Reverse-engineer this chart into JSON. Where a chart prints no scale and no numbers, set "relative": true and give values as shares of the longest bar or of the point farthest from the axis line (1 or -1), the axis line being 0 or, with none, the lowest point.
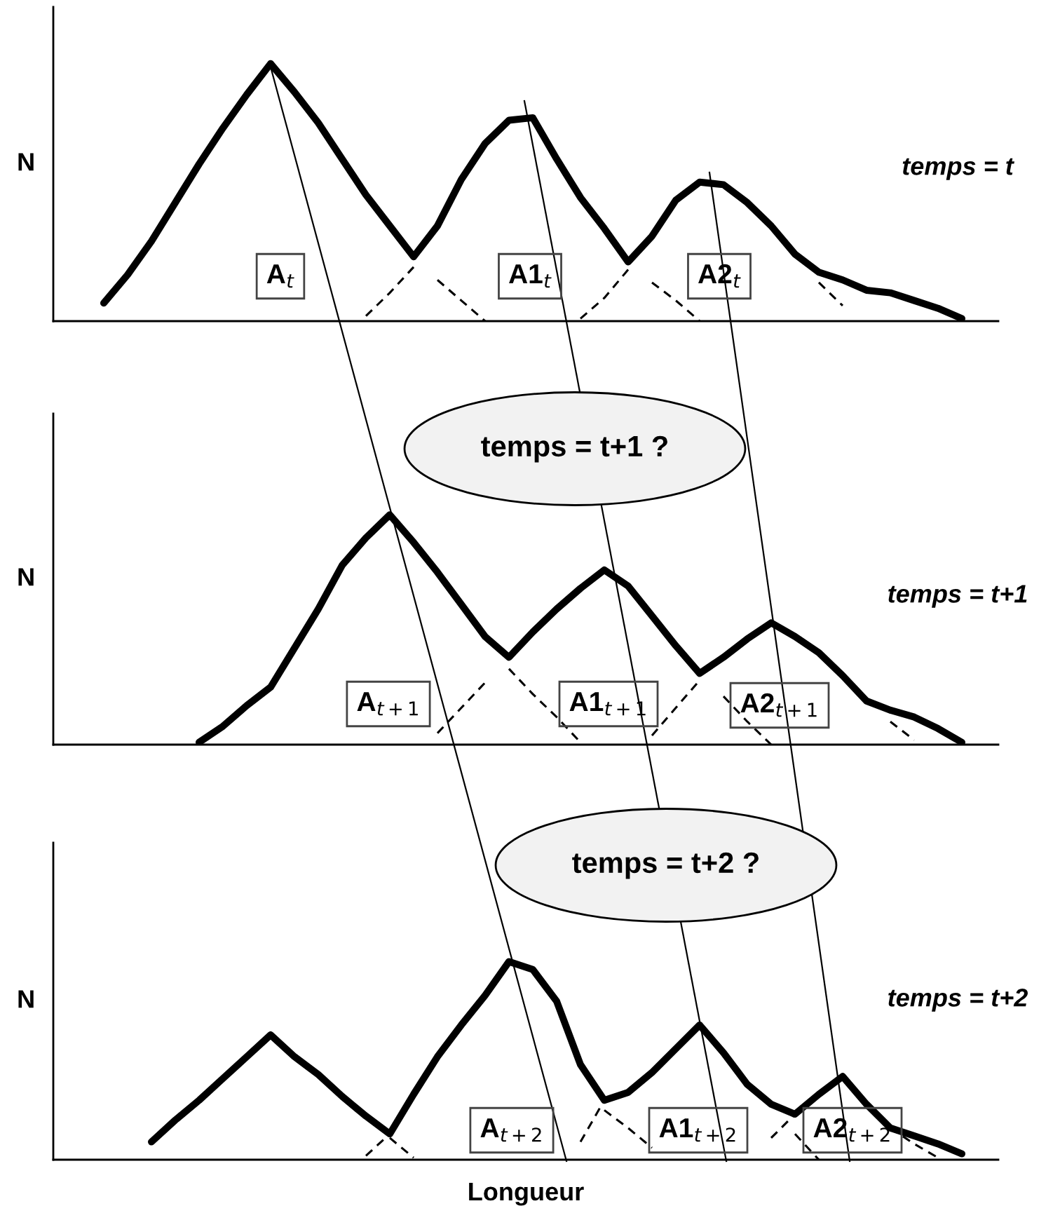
{
  "chart_data": [
    {
      "type": "line",
      "relative": true,
      "ylabel": "N",
      "categories": [
        null,
        null,
        null,
        null,
        null,
        null,
        null,
        null,
        null,
        null,
        null,
        null,
        null,
        null,
        null,
        null,
        null,
        null,
        null,
        null,
        null,
        null,
        null,
        null,
        null,
        null,
        null,
        null,
        null,
        null,
        null,
        null,
        null,
        null,
        null,
        null,
        null,
        null,
        null,
        null
      ],
      "series": [
        {
          "color": "#000000",
          "line_style": "solid",
          "values": [
            null,
            null,
            0.07,
            0.18,
            0.31,
            0.46,
            0.61,
            0.75,
            0.88,
            1.0,
            0.89,
            0.77,
            0.63,
            0.49,
            0.37,
            0.25,
            0.37,
            0.55,
            0.69,
            0.78,
            0.79,
            0.63,
            0.48,
            0.36,
            0.23,
            0.33,
            0.47,
            0.54,
            0.53,
            0.46,
            0.37,
            0.26,
            0.19,
            0.16,
            0.12,
            0.11,
            0.08,
            0.05,
            0.01,
            null
          ]
        },
        {
          "color": "#000000",
          "line_style": "dashed",
          "values": [
            null,
            null,
            null,
            null,
            null,
            null,
            null,
            null,
            null,
            null,
            null,
            null,
            null,
            0.02,
            0.11,
            0.21,
            null,
            null,
            null,
            null,
            null,
            null,
            0.01,
            0.09,
            0.2,
            null,
            null,
            null,
            null,
            null,
            null,
            null,
            null,
            null,
            null,
            null,
            null,
            null,
            null,
            null
          ]
        },
        {
          "color": "#000000",
          "line_style": "dashed",
          "values": [
            null,
            null,
            null,
            null,
            null,
            null,
            null,
            null,
            null,
            null,
            null,
            null,
            null,
            null,
            null,
            null,
            0.16,
            0.08,
            0.0,
            null,
            null,
            null,
            null,
            null,
            null,
            0.15,
            0.08,
            0.0,
            null,
            null,
            null,
            null,
            0.15,
            0.06,
            null,
            null,
            null,
            null,
            null,
            null
          ]
        }
      ],
      "annotations": [
        "temps = t",
        "A$_{t}$",
        "A1$_{t}$",
        "A2$_{t}$"
      ]
    },
    {
      "type": "line",
      "relative": true,
      "ylabel": "N",
      "categories": [
        null,
        null,
        null,
        null,
        null,
        null,
        null,
        null,
        null,
        null,
        null,
        null,
        null,
        null,
        null,
        null,
        null,
        null,
        null,
        null,
        null,
        null,
        null,
        null,
        null,
        null,
        null,
        null,
        null,
        null,
        null,
        null,
        null,
        null,
        null,
        null,
        null,
        null,
        null,
        null
      ],
      "series": [
        {
          "color": "#000000",
          "line_style": "solid",
          "values": [
            null,
            null,
            null,
            null,
            null,
            null,
            0.01,
            0.08,
            0.17,
            0.25,
            0.42,
            0.59,
            0.78,
            0.9,
            1.0,
            0.88,
            0.75,
            0.61,
            0.47,
            0.38,
            0.49,
            0.59,
            0.68,
            0.76,
            0.69,
            0.56,
            0.43,
            0.31,
            0.38,
            0.46,
            0.53,
            0.47,
            0.4,
            0.3,
            0.19,
            0.15,
            0.12,
            0.07,
            0.01,
            null
          ]
        },
        {
          "color": "#000000",
          "line_style": "dashed",
          "values": [
            null,
            null,
            null,
            null,
            null,
            null,
            null,
            null,
            null,
            null,
            null,
            null,
            null,
            null,
            null,
            null,
            0.05,
            0.16,
            0.27,
            null,
            null,
            null,
            null,
            null,
            null,
            0.04,
            0.16,
            0.28,
            null,
            null,
            null,
            null,
            null,
            null,
            null,
            null,
            null,
            null,
            null,
            null
          ]
        },
        {
          "color": "#000000",
          "line_style": "dashed",
          "values": [
            null,
            null,
            null,
            null,
            null,
            null,
            null,
            null,
            null,
            null,
            null,
            null,
            null,
            null,
            null,
            null,
            null,
            null,
            null,
            0.33,
            0.22,
            0.12,
            0.01,
            null,
            null,
            null,
            null,
            null,
            0.21,
            0.1,
            0.0,
            null,
            null,
            null,
            null,
            0.1,
            0.02,
            null,
            null,
            null
          ]
        }
      ],
      "annotations": [
        "temps = t+1",
        "A$_{t+1}$",
        "A1$_{t+1}$",
        "A2$_{t+1}$",
        "temps = t+1 ?"
      ]
    },
    {
      "type": "line",
      "relative": true,
      "ylabel": "N",
      "xlabel": "Longueur",
      "categories": [
        null,
        null,
        null,
        null,
        null,
        null,
        null,
        null,
        null,
        null,
        null,
        null,
        null,
        null,
        null,
        null,
        null,
        null,
        null,
        null,
        null,
        null,
        null,
        null,
        null,
        null,
        null,
        null,
        null,
        null,
        null,
        null,
        null,
        null,
        null,
        null,
        null,
        null,
        null,
        null
      ],
      "series": [
        {
          "color": "#000000",
          "line_style": "solid",
          "values": [
            null,
            null,
            null,
            null,
            0.09,
            0.2,
            0.3,
            0.41,
            0.52,
            0.63,
            0.52,
            0.43,
            0.32,
            0.22,
            0.13,
            0.33,
            0.52,
            0.68,
            0.83,
            1.0,
            0.96,
            0.8,
            0.48,
            0.3,
            0.34,
            0.44,
            0.56,
            0.68,
            0.54,
            0.38,
            0.28,
            0.23,
            0.33,
            0.42,
            0.28,
            0.16,
            0.12,
            0.08,
            0.03,
            null
          ]
        },
        {
          "color": "#000000",
          "line_style": "dashed",
          "values": [
            null,
            null,
            null,
            null,
            null,
            null,
            null,
            null,
            null,
            null,
            null,
            null,
            null,
            0.02,
            0.13,
            null,
            null,
            null,
            null,
            null,
            null,
            null,
            0.09,
            0.3,
            null,
            null,
            null,
            null,
            null,
            null,
            0.11,
            0.23,
            null,
            null,
            null,
            null,
            null,
            null,
            null,
            null
          ]
        },
        {
          "color": "#000000",
          "line_style": "dashed",
          "values": [
            null,
            null,
            null,
            null,
            null,
            null,
            null,
            null,
            null,
            null,
            null,
            null,
            null,
            null,
            0.11,
            0.01,
            null,
            null,
            null,
            null,
            null,
            null,
            null,
            0.25,
            0.16,
            0.06,
            null,
            null,
            null,
            null,
            null,
            0.13,
            0.0,
            null,
            null,
            0.16,
            0.08,
            0.01,
            null,
            null
          ]
        }
      ],
      "annotations": [
        "temps = t+2",
        "A$_{t+2}$",
        "A1$_{t+2}$",
        "A2$_{t+2}$",
        "temps = t+2 ?"
      ]
    }
  ]
}
